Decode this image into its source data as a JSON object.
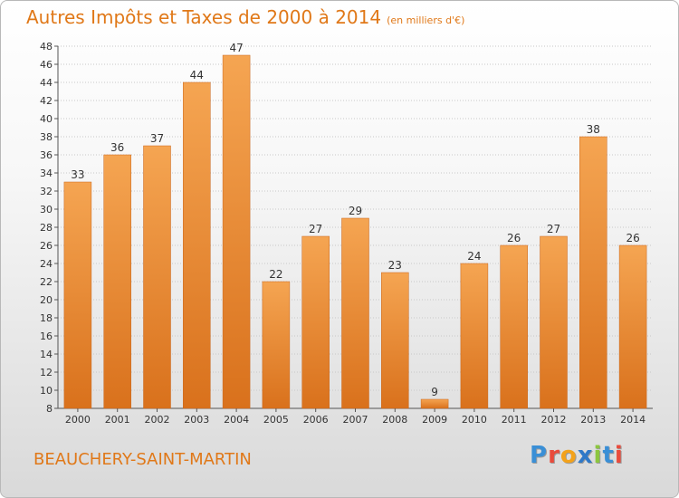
{
  "header": {
    "title": "Autres Impôts et Taxes de 2000 à 2014",
    "unit": "(en milliers d'€)"
  },
  "footer": {
    "commune": "BEAUCHERY-SAINT-MARTIN"
  },
  "logo": {
    "text": "Proxiti",
    "letters": [
      "P",
      "r",
      "o",
      "x",
      "i",
      "t",
      "i"
    ],
    "colors": [
      "#3a8fd6",
      "#e94b3c",
      "#f3a21b",
      "#2f79c8",
      "#8cc63f",
      "#3a8fd6",
      "#e94b3c"
    ]
  },
  "colors": {
    "accent": "#e07818",
    "bar_top": "#f5a552",
    "bar_bottom": "#d9711c",
    "bar_edge": "#c9651a"
  },
  "chart_data": {
    "type": "bar",
    "title": "Autres Impôts et Taxes de 2000 à 2014",
    "subtitle": "(en milliers d'€)",
    "xlabel": "",
    "ylabel": "",
    "categories": [
      "2000",
      "2001",
      "2002",
      "2003",
      "2004",
      "2005",
      "2006",
      "2007",
      "2008",
      "2009",
      "2010",
      "2011",
      "2012",
      "2013",
      "2014"
    ],
    "values": [
      33,
      36,
      37,
      44,
      47,
      22,
      27,
      29,
      23,
      9,
      24,
      26,
      27,
      38,
      26
    ],
    "ylim": [
      8,
      48
    ],
    "yticks": [
      8,
      10,
      12,
      14,
      16,
      18,
      20,
      22,
      24,
      26,
      28,
      30,
      32,
      34,
      36,
      38,
      40,
      42,
      44,
      46,
      48
    ],
    "grid": "dotted horizontal",
    "legend": "none"
  }
}
